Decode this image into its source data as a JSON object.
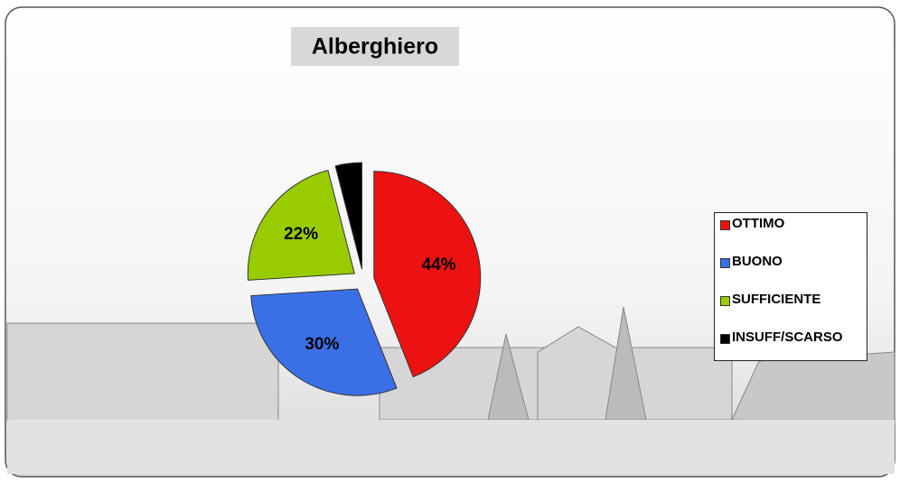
{
  "chart_data": {
    "type": "pie",
    "title": "Alberghiero",
    "categories": [
      "OTTIMO",
      "BUONO",
      "SUFFICIENTE",
      "INSUFF/SCARSO"
    ],
    "values": [
      44,
      30,
      22,
      4
    ],
    "value_labels": [
      "44%",
      "30%",
      "22%",
      null
    ],
    "colors": [
      "#ee1111",
      "#3b6fe6",
      "#99cc00",
      "#000000"
    ],
    "legend": "right"
  }
}
